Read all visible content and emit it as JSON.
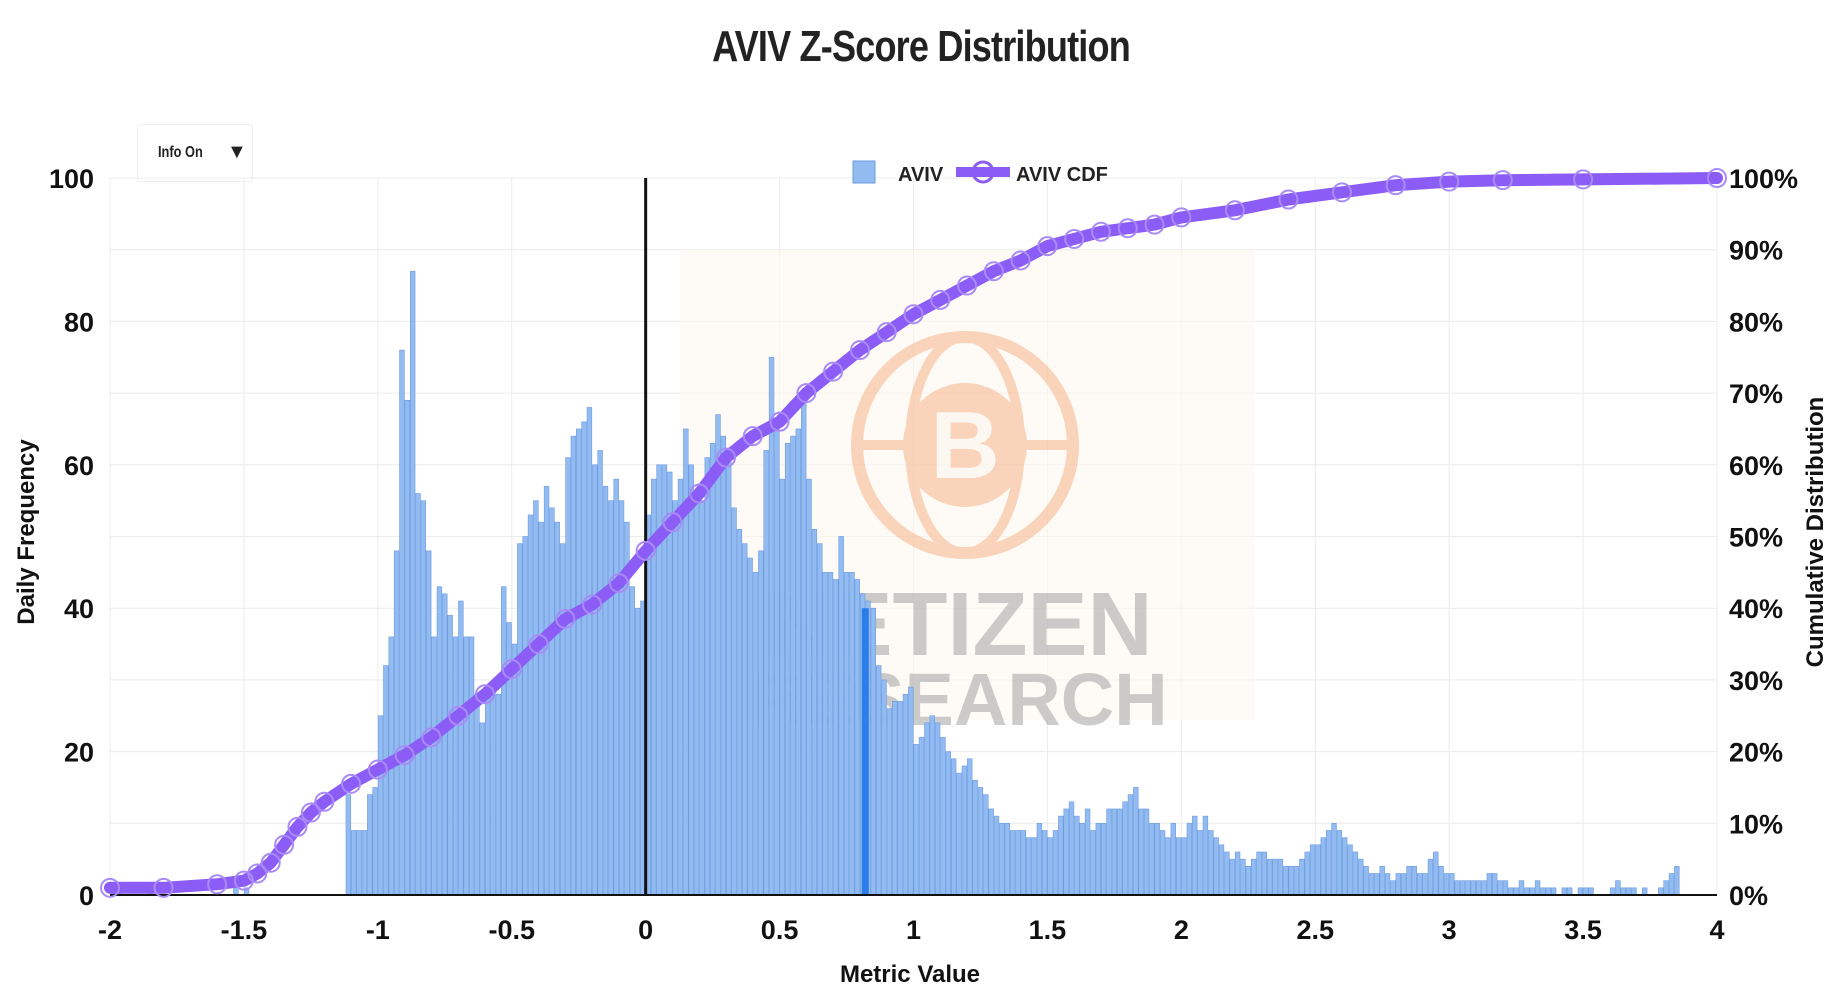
{
  "title": "AVIV Z-Score Distribution",
  "info_dropdown": {
    "label": "Info On",
    "icon": "caret-down-icon"
  },
  "watermark": {
    "line1": "NETIZEN",
    "line2": "RESEARCH",
    "logo": "bitcoin-globe-icon"
  },
  "colors": {
    "bar": "#92bbf2",
    "bar_edge": "#6d9be0",
    "cdf": "#8b5cf6",
    "marker": "#2b7de9",
    "zero_line": "#111111"
  },
  "chart_data": {
    "type": "bar",
    "title": "AVIV Z-Score Distribution",
    "xlabel": "Metric Value",
    "ylabel": "Daily Frequency",
    "y2label": "Cumulative Distribution",
    "xlim": [
      -2,
      4
    ],
    "ylim": [
      0,
      100
    ],
    "y2lim": [
      0,
      100
    ],
    "bin_width": 0.02,
    "x_ticks": [
      "-2",
      "-1.5",
      "-1",
      "-0.5",
      "0",
      "0.5",
      "1",
      "1.5",
      "2",
      "2.5",
      "3",
      "3.5",
      "4"
    ],
    "y_ticks": [
      "0",
      "20",
      "40",
      "60",
      "80",
      "100"
    ],
    "y2_ticks": [
      "0%",
      "10%",
      "20%",
      "30%",
      "40%",
      "50%",
      "60%",
      "70%",
      "80%",
      "90%",
      "100%"
    ],
    "legend": [
      "AVIV",
      "AVIV CDF"
    ],
    "legend_position": "top-center",
    "grid": true,
    "vertical_line_x": 0,
    "current_value_x": 0.82,
    "current_value_y": 40,
    "series": [
      {
        "name": "AVIV",
        "type": "bar",
        "x_start": -2.0,
        "values": [
          1,
          1,
          0,
          0,
          0,
          0,
          0,
          1,
          0,
          0,
          0,
          0,
          0,
          0,
          0,
          0,
          0,
          0,
          0,
          0,
          0,
          0,
          0,
          1,
          0,
          1,
          0,
          0,
          0,
          0,
          0,
          0,
          0,
          0,
          0,
          0,
          0,
          0,
          0,
          0,
          0,
          0,
          0,
          0,
          14,
          9,
          9,
          9,
          14,
          15,
          25,
          32,
          36,
          48,
          76,
          69,
          87,
          56,
          55,
          48,
          36,
          43,
          42,
          39,
          36,
          41,
          36,
          36,
          28,
          24,
          29,
          29,
          28,
          43,
          38,
          35,
          49,
          50,
          53,
          55,
          52,
          57,
          54,
          52,
          49,
          61,
          64,
          65,
          66,
          68,
          60,
          62,
          57,
          55,
          58,
          55,
          52,
          43,
          40,
          41,
          53,
          58,
          60,
          60,
          59,
          55,
          58,
          65,
          60,
          55,
          55,
          61,
          63,
          67,
          64,
          62,
          54,
          51,
          49,
          47,
          45,
          48,
          62,
          75,
          65,
          58,
          63,
          64,
          65,
          69,
          58,
          51,
          49,
          45,
          45,
          44,
          50,
          45,
          45,
          44,
          42,
          41,
          40,
          32,
          30,
          26,
          27,
          27,
          28,
          29,
          21,
          22,
          24,
          25,
          24,
          22,
          20,
          19,
          17,
          18,
          19,
          16,
          15,
          14,
          12,
          11,
          10,
          10,
          9,
          9,
          9,
          8,
          8,
          10,
          9,
          8,
          9,
          11,
          12,
          13,
          11,
          10,
          12,
          9,
          10,
          10,
          12,
          12,
          12,
          13,
          14,
          15,
          12,
          12,
          10,
          10,
          9,
          8,
          10,
          8,
          8,
          10,
          11,
          9,
          11,
          9,
          8,
          7,
          6,
          5,
          6,
          5,
          4,
          5,
          6,
          6,
          5,
          5,
          5,
          4,
          4,
          4,
          5,
          6,
          7,
          7,
          8,
          9,
          10,
          9,
          8,
          7,
          6,
          5,
          4,
          3,
          3,
          4,
          3,
          2,
          3,
          3,
          4,
          4,
          3,
          3,
          5,
          6,
          4,
          3,
          3,
          2,
          2,
          2,
          2,
          2,
          2,
          3,
          3,
          2,
          2,
          1,
          1,
          2,
          1,
          1,
          2,
          1,
          1,
          1,
          0,
          1,
          1,
          0,
          1,
          1,
          1,
          0,
          0,
          0,
          1,
          2,
          1,
          1,
          1,
          0,
          1,
          0,
          0,
          1,
          2,
          3,
          4
        ]
      },
      {
        "name": "AVIV CDF",
        "type": "line",
        "x": [
          -2,
          -1.8,
          -1.6,
          -1.5,
          -1.45,
          -1.4,
          -1.35,
          -1.3,
          -1.25,
          -1.2,
          -1.1,
          -1,
          -0.9,
          -0.8,
          -0.7,
          -0.6,
          -0.5,
          -0.4,
          -0.3,
          -0.2,
          -0.1,
          0,
          0.1,
          0.2,
          0.3,
          0.4,
          0.5,
          0.6,
          0.7,
          0.8,
          0.9,
          1,
          1.1,
          1.2,
          1.3,
          1.4,
          1.5,
          1.6,
          1.7,
          1.8,
          1.9,
          2,
          2.2,
          2.4,
          2.6,
          2.8,
          3,
          3.2,
          3.5,
          4
        ],
        "values": [
          1,
          1,
          1.5,
          2,
          3,
          4.5,
          7,
          9.5,
          11.5,
          13,
          15.5,
          17.5,
          19.5,
          22,
          25,
          28,
          31.5,
          35,
          38.5,
          40.5,
          43.5,
          48,
          52,
          56,
          61,
          64,
          66,
          70,
          73,
          76,
          78.5,
          81,
          83,
          85,
          87,
          88.5,
          90.5,
          91.5,
          92.5,
          93,
          93.5,
          94.5,
          95.5,
          97,
          98,
          99,
          99.5,
          99.7,
          99.8,
          100
        ]
      }
    ]
  }
}
